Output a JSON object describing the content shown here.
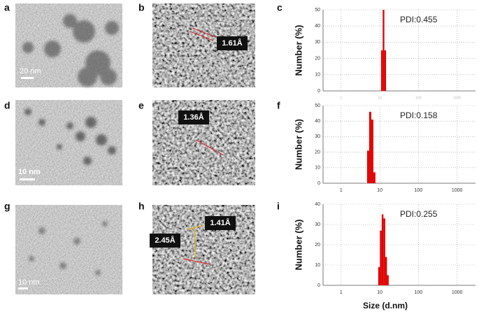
{
  "panel_labels": [
    "a",
    "b",
    "c",
    "d",
    "e",
    "f",
    "g",
    "h",
    "i"
  ],
  "scale_bars": [
    "20 nm",
    "10 nm",
    "10 nm"
  ],
  "lattice_spacings": [
    [
      "1.61Å"
    ],
    [
      "1.36Å"
    ],
    [
      "2.45Å",
      "1.41Å"
    ]
  ],
  "chart_data": [
    {
      "type": "histogram",
      "ylabel": "Number (%)",
      "annotation": "PDI:0.455",
      "bins": [
        10.8,
        11.9,
        13.1,
        14.5
      ],
      "values": [
        25,
        50,
        25
      ],
      "color": "#e00000",
      "xlim": [
        0.34,
        3000
      ],
      "xticks": [
        1,
        10,
        100,
        1000
      ],
      "log_x": true,
      "ylim": [
        0,
        50
      ],
      "yticks": [
        0,
        10,
        20,
        30,
        40,
        50
      ],
      "grid": true
    },
    {
      "type": "histogram",
      "ylabel": "Number (%)",
      "annotation": "PDI:0.158",
      "bins": [
        4.7,
        5.3,
        6.0,
        6.8,
        7.7
      ],
      "values": [
        21,
        46,
        41,
        7
      ],
      "color": "#e00000",
      "xlim": [
        0.34,
        3000
      ],
      "xticks": [
        1,
        10,
        100,
        1000
      ],
      "log_x": true,
      "ylim": [
        0,
        50
      ],
      "yticks": [
        0,
        10,
        20,
        30,
        40,
        50
      ],
      "grid": true
    },
    {
      "type": "histogram",
      "ylabel": "Number (%)",
      "xlabel": "Size (d.nm)",
      "annotation": "PDI:0.255",
      "bins": [
        9.1,
        10.1,
        11.2,
        12.4,
        13.8,
        15.3,
        17.0
      ],
      "values": [
        9,
        27,
        35,
        33,
        14,
        5
      ],
      "color": "#e00000",
      "xlim": [
        0.34,
        3000
      ],
      "xticks": [
        1,
        10,
        100,
        1000
      ],
      "log_x": true,
      "ylim": [
        0,
        40
      ],
      "yticks": [
        0,
        10,
        20,
        30,
        40
      ],
      "grid": true
    }
  ]
}
